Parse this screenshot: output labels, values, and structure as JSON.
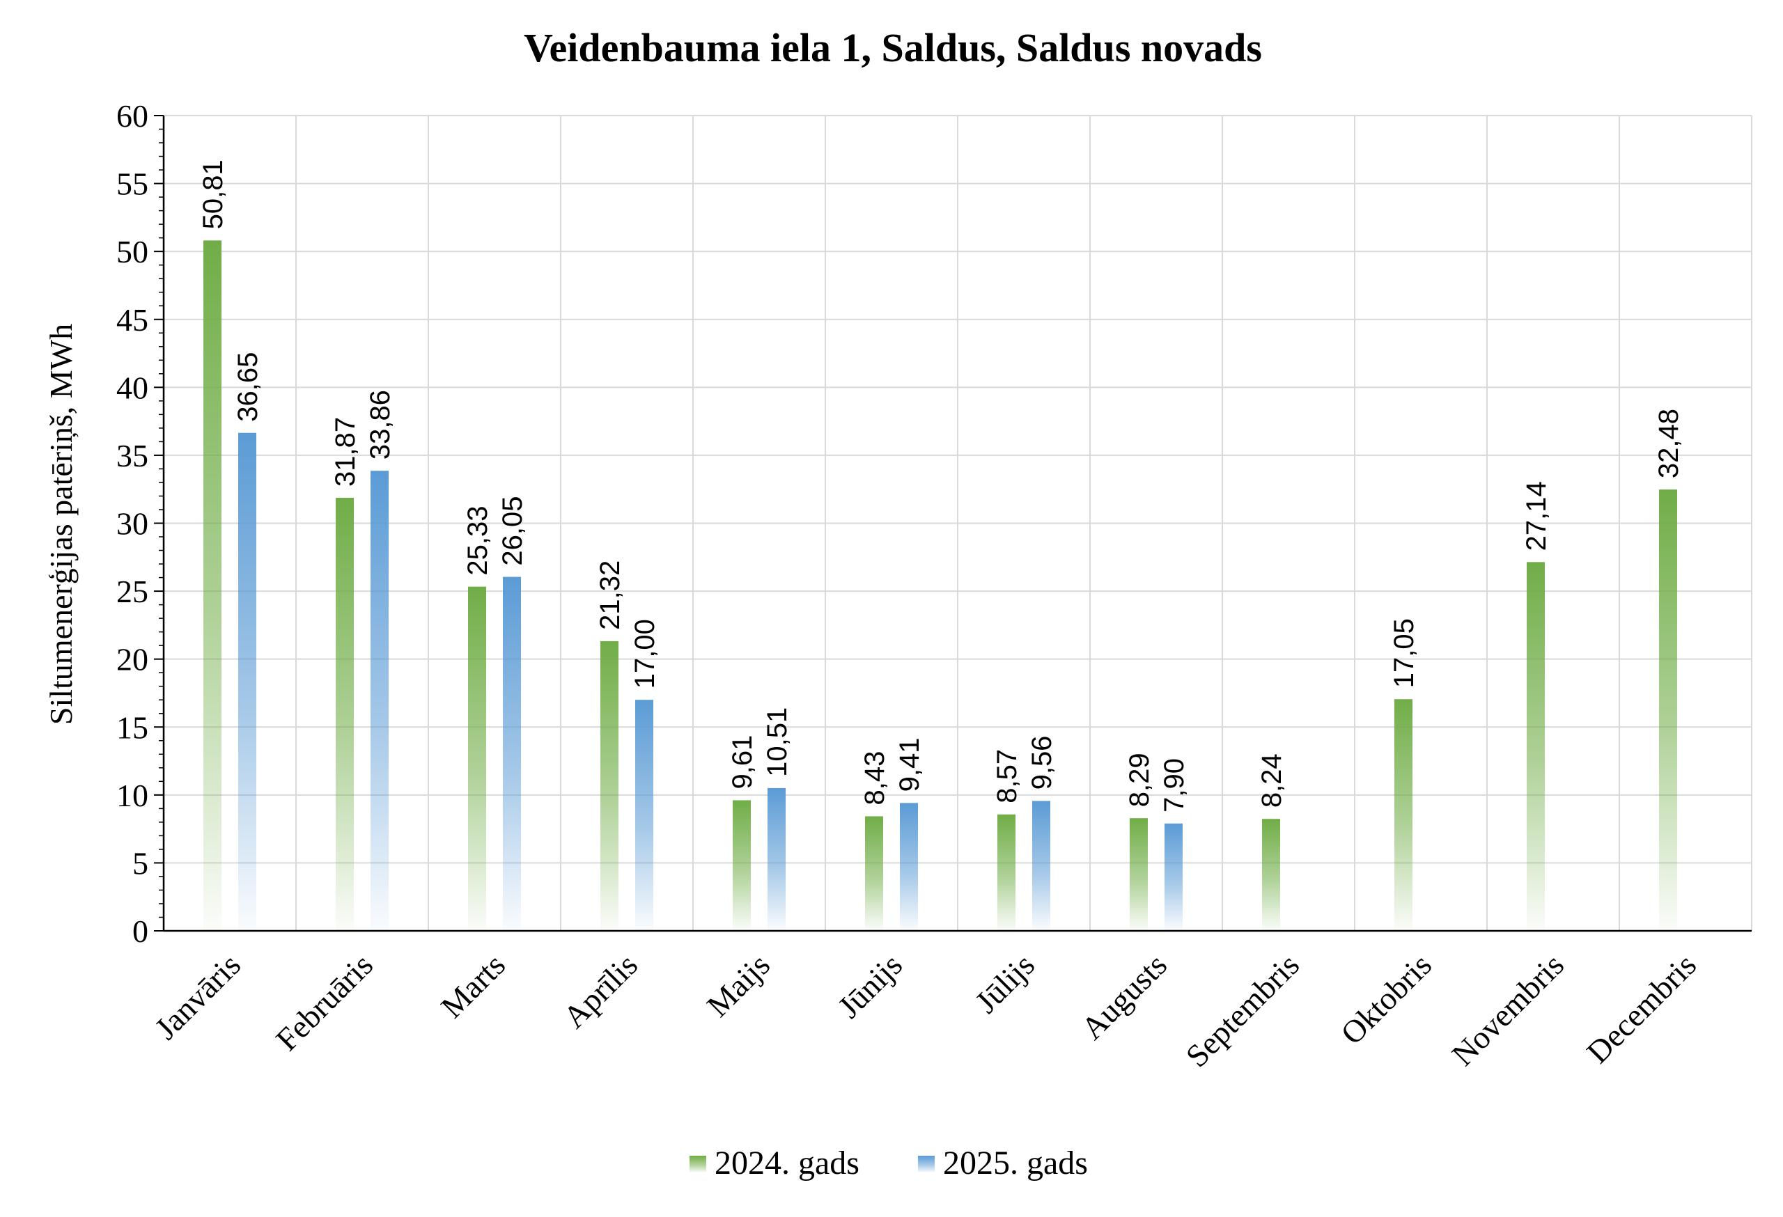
{
  "chart_data": {
    "type": "bar",
    "title": "Veidenbauma iela 1, Saldus, Saldus novads",
    "xlabel": "",
    "ylabel": "Siltumenerģijas patēriņš, MWh",
    "ylim": [
      0,
      60
    ],
    "yticks": [
      "0",
      "5",
      "10",
      "15",
      "20",
      "25",
      "30",
      "35",
      "40",
      "45",
      "50",
      "55",
      "60"
    ],
    "grid": true,
    "legend_position": "bottom",
    "categories": [
      "Janvāris",
      "Februāris",
      "Marts",
      "Aprīlis",
      "Maijs",
      "Jūnijs",
      "Jūlijs",
      "Augusts",
      "Septembris",
      "Oktobris",
      "Novembris",
      "Decembris"
    ],
    "series": [
      {
        "name": "2024. gads",
        "color": "#70AD47",
        "values": [
          50.81,
          31.87,
          25.33,
          21.32,
          9.61,
          8.43,
          8.57,
          8.29,
          8.24,
          17.05,
          27.14,
          32.48
        ],
        "labels": [
          "50,81",
          "31,87",
          "25,33",
          "21,32",
          "9,61",
          "8,43",
          "8,57",
          "8,29",
          "8,24",
          "17,05",
          "27,14",
          "32,48"
        ]
      },
      {
        "name": "2025. gads",
        "color": "#5B9BD5",
        "values": [
          36.65,
          33.86,
          26.05,
          17.0,
          10.51,
          9.41,
          9.56,
          7.9,
          null,
          null,
          null,
          null
        ],
        "labels": [
          "36,65",
          "33,86",
          "26,05",
          "17,00",
          "10,51",
          "9,41",
          "9,56",
          "7,90",
          null,
          null,
          null,
          null
        ]
      }
    ]
  }
}
